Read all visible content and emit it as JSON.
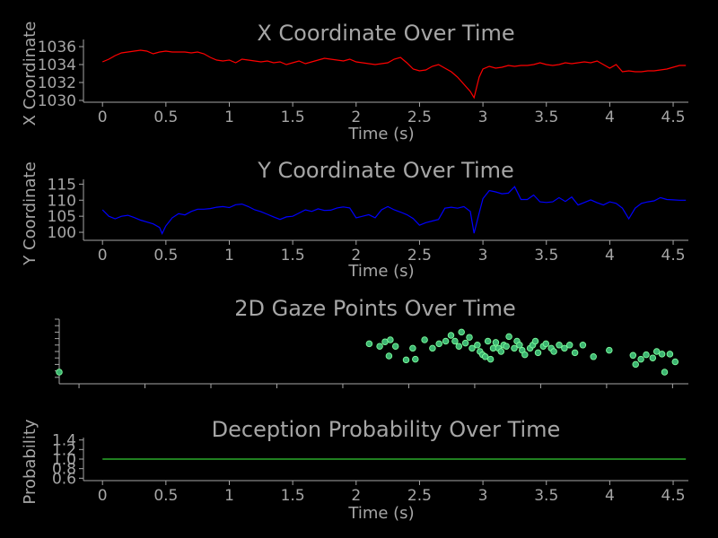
{
  "colors": {
    "background": "#000000",
    "text": "#a6a6a6",
    "x_series": "#ff0000",
    "y_series": "#0000ff",
    "gaze_fill": "#3cb371",
    "gaze_edge": "#7cfc9c",
    "probability": "#33cc33"
  },
  "chart_data": [
    {
      "type": "line",
      "title": "X Coordinate Over Time",
      "xlabel": "Time (s)",
      "ylabel": "X Coordinate",
      "xlim": [
        -0.15,
        4.62
      ],
      "ylim": [
        1029.8,
        1036.8
      ],
      "xticks": [
        0,
        0.5,
        1,
        1.5,
        2,
        2.5,
        3,
        3.5,
        4,
        4.5
      ],
      "yticks": [
        1030,
        1032,
        1034,
        1036
      ],
      "xtick_labels": [
        "0",
        "0.5",
        "1",
        "1.5",
        "2",
        "2.5",
        "3",
        "3.5",
        "4",
        "4.5"
      ],
      "ytick_labels": [
        "1030",
        "1032",
        "1034",
        "1036"
      ],
      "series": [
        {
          "x": [
            0,
            0.05,
            0.1,
            0.15,
            0.2,
            0.25,
            0.3,
            0.35,
            0.4,
            0.45,
            0.5,
            0.55,
            0.6,
            0.65,
            0.7,
            0.75,
            0.8,
            0.85,
            0.9,
            0.95,
            1.0,
            1.05,
            1.1,
            1.15,
            1.2,
            1.25,
            1.3,
            1.35,
            1.4,
            1.45,
            1.5,
            1.55,
            1.6,
            1.65,
            1.7,
            1.75,
            1.8,
            1.85,
            1.9,
            1.95,
            2.0,
            2.05,
            2.1,
            2.15,
            2.2,
            2.25,
            2.3,
            2.35,
            2.4,
            2.45,
            2.5,
            2.55,
            2.6,
            2.65,
            2.7,
            2.75,
            2.8,
            2.85,
            2.9,
            2.93,
            2.97,
            3.0,
            3.05,
            3.1,
            3.15,
            3.2,
            3.25,
            3.3,
            3.35,
            3.4,
            3.45,
            3.5,
            3.55,
            3.6,
            3.65,
            3.7,
            3.75,
            3.8,
            3.85,
            3.9,
            3.95,
            4.0,
            4.05,
            4.1,
            4.15,
            4.2,
            4.25,
            4.3,
            4.35,
            4.4,
            4.45,
            4.5,
            4.55,
            4.6
          ],
          "y": [
            1034.3,
            1034.6,
            1035.0,
            1035.3,
            1035.4,
            1035.5,
            1035.6,
            1035.5,
            1035.2,
            1035.4,
            1035.5,
            1035.4,
            1035.4,
            1035.4,
            1035.3,
            1035.4,
            1035.2,
            1034.8,
            1034.5,
            1034.4,
            1034.5,
            1034.2,
            1034.6,
            1034.5,
            1034.4,
            1034.3,
            1034.4,
            1034.2,
            1034.3,
            1034.0,
            1034.2,
            1034.4,
            1034.1,
            1034.3,
            1034.5,
            1034.7,
            1034.6,
            1034.5,
            1034.4,
            1034.6,
            1034.3,
            1034.2,
            1034.1,
            1034.0,
            1034.1,
            1034.2,
            1034.6,
            1034.8,
            1034.2,
            1033.5,
            1033.3,
            1033.4,
            1033.8,
            1034.0,
            1033.6,
            1033.2,
            1032.6,
            1031.8,
            1031.0,
            1030.3,
            1032.6,
            1033.5,
            1033.8,
            1033.6,
            1033.7,
            1033.9,
            1033.8,
            1033.9,
            1033.9,
            1034.0,
            1034.2,
            1034.0,
            1033.9,
            1034.0,
            1034.2,
            1034.1,
            1034.2,
            1034.3,
            1034.2,
            1034.4,
            1034.0,
            1033.6,
            1034.0,
            1033.2,
            1033.3,
            1033.2,
            1033.2,
            1033.3,
            1033.3,
            1033.4,
            1033.5,
            1033.7,
            1033.9,
            1033.9
          ]
        }
      ]
    },
    {
      "type": "line",
      "title": "Y Coordinate Over Time",
      "xlabel": "Time (s)",
      "ylabel": "Y Coordinate",
      "xlim": [
        -0.15,
        4.62
      ],
      "ylim": [
        97.5,
        116.5
      ],
      "xticks": [
        0,
        0.5,
        1,
        1.5,
        2,
        2.5,
        3,
        3.5,
        4,
        4.5
      ],
      "yticks": [
        100,
        105,
        110,
        115
      ],
      "xtick_labels": [
        "0",
        "0.5",
        "1",
        "1.5",
        "2",
        "2.5",
        "3",
        "3.5",
        "4",
        "4.5"
      ],
      "ytick_labels": [
        "100",
        "105",
        "110",
        "115"
      ],
      "series": [
        {
          "x": [
            0,
            0.05,
            0.1,
            0.15,
            0.2,
            0.25,
            0.3,
            0.35,
            0.4,
            0.45,
            0.47,
            0.5,
            0.55,
            0.6,
            0.65,
            0.7,
            0.75,
            0.8,
            0.85,
            0.9,
            0.95,
            1.0,
            1.05,
            1.1,
            1.15,
            1.2,
            1.25,
            1.3,
            1.35,
            1.4,
            1.45,
            1.5,
            1.55,
            1.6,
            1.65,
            1.7,
            1.75,
            1.8,
            1.85,
            1.9,
            1.95,
            2.0,
            2.05,
            2.1,
            2.15,
            2.2,
            2.25,
            2.3,
            2.35,
            2.4,
            2.45,
            2.5,
            2.55,
            2.6,
            2.65,
            2.7,
            2.75,
            2.8,
            2.85,
            2.9,
            2.93,
            2.97,
            3.0,
            3.05,
            3.1,
            3.15,
            3.2,
            3.25,
            3.3,
            3.35,
            3.4,
            3.45,
            3.5,
            3.55,
            3.6,
            3.65,
            3.7,
            3.75,
            3.8,
            3.85,
            3.9,
            3.95,
            4.0,
            4.05,
            4.1,
            4.15,
            4.2,
            4.25,
            4.3,
            4.35,
            4.4,
            4.45,
            4.5,
            4.55,
            4.6
          ],
          "y": [
            107.0,
            105.0,
            104.2,
            105.0,
            105.3,
            104.6,
            103.8,
            103.2,
            102.6,
            101.5,
            99.6,
            102.0,
            104.5,
            105.8,
            105.4,
            106.5,
            107.2,
            107.2,
            107.4,
            107.8,
            108.0,
            107.7,
            108.6,
            108.8,
            108.0,
            107.0,
            106.4,
            105.6,
            104.8,
            104.0,
            104.8,
            105.0,
            106.0,
            107.0,
            106.5,
            107.3,
            106.8,
            106.9,
            107.6,
            107.9,
            107.6,
            104.5,
            105.0,
            105.5,
            104.5,
            107.0,
            108.0,
            107.0,
            106.3,
            105.5,
            104.3,
            102.2,
            103.0,
            103.5,
            104.0,
            107.5,
            107.8,
            107.5,
            108.0,
            106.5,
            99.7,
            106.0,
            110.5,
            113.0,
            112.6,
            112.0,
            112.2,
            114.2,
            110.2,
            110.2,
            111.6,
            109.5,
            109.3,
            109.5,
            110.8,
            109.6,
            111.0,
            108.5,
            109.3,
            110.1,
            109.2,
            108.5,
            109.5,
            109.0,
            107.5,
            104.2,
            107.5,
            109.0,
            109.5,
            109.8,
            110.8,
            110.2,
            110.1,
            110.0,
            110.0
          ]
        }
      ]
    },
    {
      "type": "scatter",
      "title": "2D Gaze Points Over Time",
      "xlim": [
        -0.15,
        4.62
      ],
      "ylim": [
        0,
        1
      ],
      "xticks": [
        0,
        0.5,
        1,
        1.5,
        2,
        2.5,
        3,
        3.5,
        4,
        4.5
      ],
      "yticks": [
        0.1,
        0.2,
        0.3,
        0.4,
        0.5,
        0.6,
        0.7,
        0.8,
        0.9,
        1.0
      ],
      "points": [
        [
          -0.15,
          0.18
        ],
        [
          2.2,
          0.62
        ],
        [
          2.28,
          0.58
        ],
        [
          2.32,
          0.65
        ],
        [
          2.36,
          0.68
        ],
        [
          2.4,
          0.58
        ],
        [
          2.35,
          0.43
        ],
        [
          2.48,
          0.37
        ],
        [
          2.53,
          0.55
        ],
        [
          2.55,
          0.38
        ],
        [
          2.62,
          0.68
        ],
        [
          2.68,
          0.55
        ],
        [
          2.73,
          0.62
        ],
        [
          2.78,
          0.66
        ],
        [
          2.82,
          0.75
        ],
        [
          2.85,
          0.66
        ],
        [
          2.88,
          0.58
        ],
        [
          2.9,
          0.8
        ],
        [
          2.93,
          0.63
        ],
        [
          2.96,
          0.72
        ],
        [
          2.98,
          0.55
        ],
        [
          3.02,
          0.6
        ],
        [
          3.04,
          0.5
        ],
        [
          3.06,
          0.45
        ],
        [
          3.08,
          0.42
        ],
        [
          3.1,
          0.66
        ],
        [
          3.12,
          0.38
        ],
        [
          3.14,
          0.55
        ],
        [
          3.16,
          0.64
        ],
        [
          3.18,
          0.55
        ],
        [
          3.2,
          0.5
        ],
        [
          3.22,
          0.6
        ],
        [
          3.24,
          0.58
        ],
        [
          3.26,
          0.73
        ],
        [
          3.3,
          0.55
        ],
        [
          3.32,
          0.66
        ],
        [
          3.34,
          0.6
        ],
        [
          3.36,
          0.52
        ],
        [
          3.38,
          0.45
        ],
        [
          3.42,
          0.55
        ],
        [
          3.44,
          0.6
        ],
        [
          3.46,
          0.66
        ],
        [
          3.48,
          0.48
        ],
        [
          3.52,
          0.58
        ],
        [
          3.54,
          0.62
        ],
        [
          3.58,
          0.55
        ],
        [
          3.6,
          0.5
        ],
        [
          3.64,
          0.6
        ],
        [
          3.68,
          0.55
        ],
        [
          3.72,
          0.6
        ],
        [
          3.76,
          0.48
        ],
        [
          3.82,
          0.6
        ],
        [
          3.9,
          0.42
        ],
        [
          4.02,
          0.52
        ],
        [
          4.2,
          0.44
        ],
        [
          4.22,
          0.3
        ],
        [
          4.26,
          0.38
        ],
        [
          4.3,
          0.45
        ],
        [
          4.35,
          0.4
        ],
        [
          4.38,
          0.5
        ],
        [
          4.42,
          0.46
        ],
        [
          4.44,
          0.18
        ],
        [
          4.48,
          0.46
        ],
        [
          4.52,
          0.34
        ]
      ]
    },
    {
      "type": "line",
      "title": "Deception Probability Over Time",
      "xlabel": "Time (s)",
      "ylabel": "Probability",
      "xlim": [
        -0.15,
        4.62
      ],
      "ylim": [
        0.55,
        1.45
      ],
      "xticks": [
        0,
        0.5,
        1,
        1.5,
        2,
        2.5,
        3,
        3.5,
        4,
        4.5
      ],
      "yticks": [
        0.6,
        0.8,
        1.0,
        1.2,
        1.4
      ],
      "xtick_labels": [
        "0",
        "0.5",
        "1",
        "1.5",
        "2",
        "2.5",
        "3",
        "3.5",
        "4",
        "4.5"
      ],
      "ytick_labels": [
        "0.6",
        "0.8",
        "1.0",
        "1.2",
        "1.4"
      ],
      "series": [
        {
          "x": [
            0,
            4.6
          ],
          "y": [
            1.0,
            1.0
          ]
        }
      ]
    }
  ]
}
